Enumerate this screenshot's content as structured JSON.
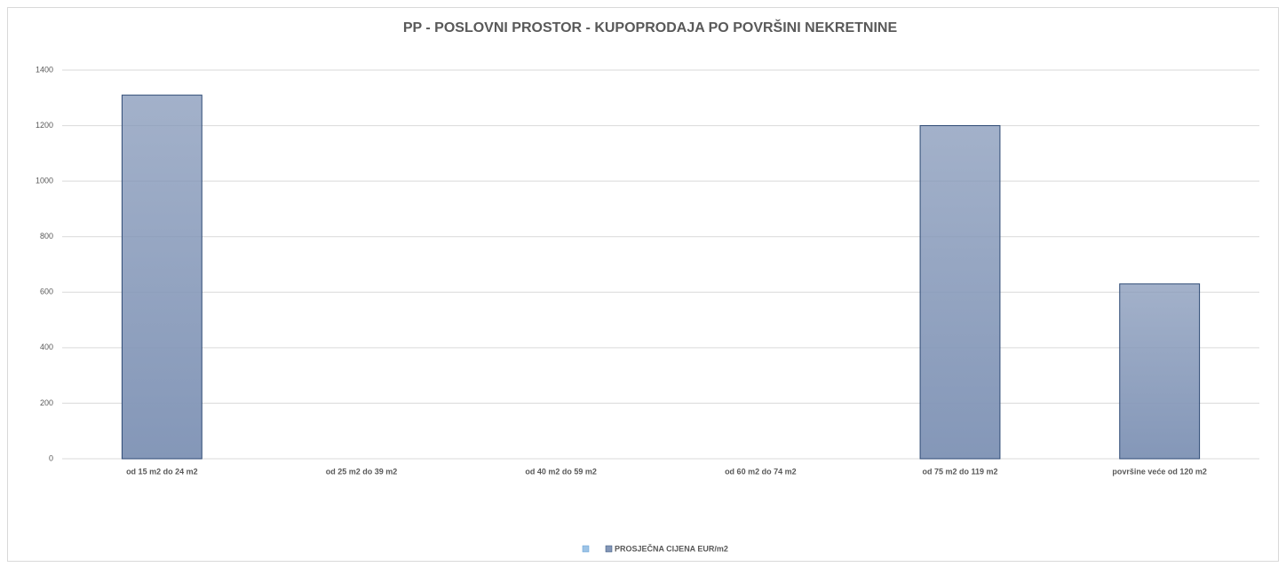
{
  "chart_data": {
    "type": "bar",
    "title": "PP - POSLOVNI PROSTOR - KUPOPRODAJA PO POVRŠINI NEKRETNINE",
    "categories": [
      "od 15 m2 do 24 m2",
      "od 25 m2 do 39 m2",
      "od 40 m2 do 59 m2",
      "od 60 m2 do 74 m2",
      "od 75 m2 do 119 m2",
      "površine veće od 120 m2"
    ],
    "series": [
      {
        "name": "PROSJEČNA CIJENA EUR/m2",
        "color": "#8497b8",
        "values": [
          1310,
          null,
          null,
          null,
          1200,
          630
        ]
      }
    ],
    "ylim": [
      0,
      1400
    ],
    "yticks": [
      0,
      200,
      400,
      600,
      800,
      1000,
      1200,
      1400
    ],
    "grid": true,
    "legend": "bottom"
  }
}
